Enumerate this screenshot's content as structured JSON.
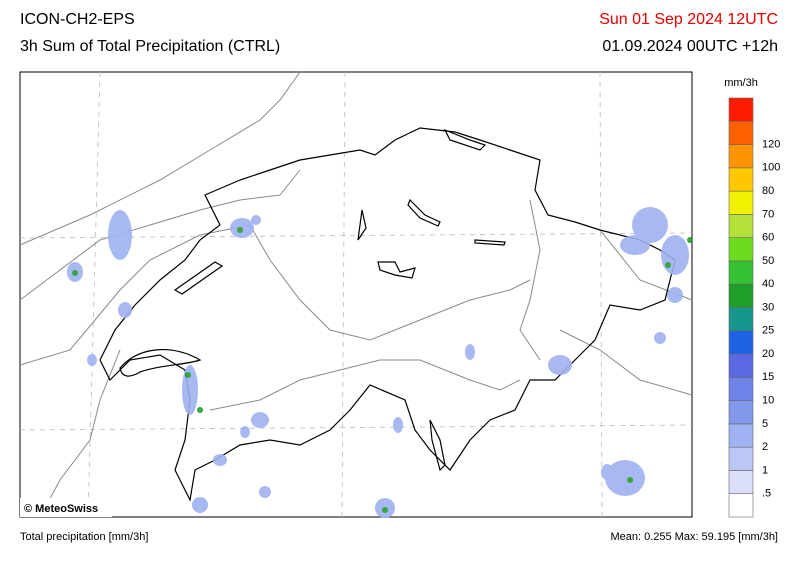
{
  "header": {
    "model": "ICON-CH2-EPS",
    "product": "3h Sum of Total Precipitation (CTRL)",
    "valid_time": "Sun 01 Sep 2024 12UTC",
    "run": "01.09.2024 00UTC +12h"
  },
  "map": {
    "credit": "© MeteoSwiss"
  },
  "colorbar": {
    "unit": "mm/3h",
    "labels": [
      ".5",
      "1",
      "2",
      "5",
      "10",
      "15",
      "20",
      "25",
      "30",
      "40",
      "50",
      "60",
      "70",
      "80",
      "100",
      "120"
    ],
    "colors": [
      "#ffffff",
      "#dcdffb",
      "#bcc7f5",
      "#9fb2f1",
      "#8399ec",
      "#6f82e8",
      "#5a68e2",
      "#1f62e6",
      "#17968c",
      "#1f9e2a",
      "#34c234",
      "#6bdc1f",
      "#b3e03a",
      "#f1f000",
      "#ffc800",
      "#ff9400",
      "#ff6000",
      "#ff1a00"
    ]
  },
  "footer": {
    "left": "Total precipitation [mm/3h]",
    "stats": "Mean:   0.255 Max:  59.195 [mm/3h]"
  }
}
